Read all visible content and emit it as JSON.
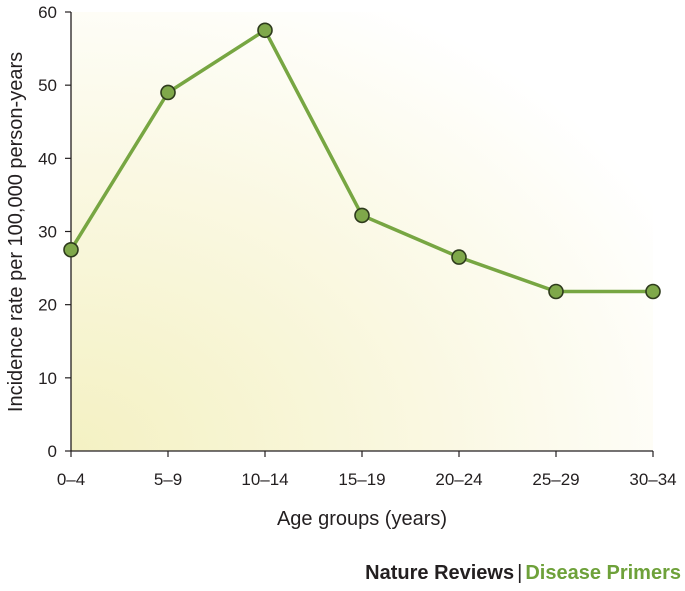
{
  "chart_data": {
    "type": "line",
    "categories": [
      "0–4",
      "5–9",
      "10–14",
      "15–19",
      "20–24",
      "25–29",
      "30–34"
    ],
    "values": [
      27.5,
      49,
      57.5,
      32.2,
      26.5,
      21.8,
      21.8
    ],
    "xlabel": "Age groups (years)",
    "ylabel": "Incidence rate per 100,000 person-years",
    "ylim": [
      0,
      60
    ],
    "yticks": [
      "0",
      "10",
      "20",
      "30",
      "40",
      "50",
      "60"
    ],
    "grid": false,
    "legend": "none"
  },
  "footer": {
    "brand": "Nature Reviews",
    "separator": "|",
    "series": "Disease Primers"
  },
  "colors": {
    "line": "#77a642",
    "marker_fill": "#7fa84a",
    "marker_stroke": "#2e3b1c",
    "background_tint": "#f6f4c8",
    "footer_accent": "#6ea13a"
  }
}
